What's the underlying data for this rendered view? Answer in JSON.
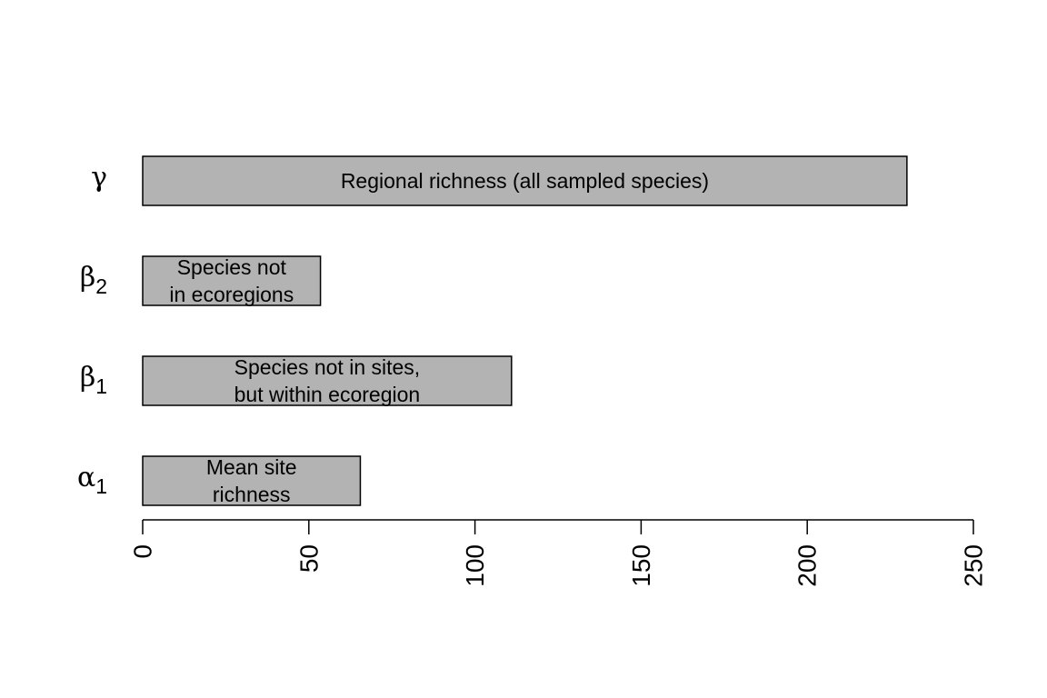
{
  "chart_data": {
    "type": "bar",
    "orientation": "horizontal",
    "categories": [
      {
        "symbol": "α",
        "subscript": "1",
        "value": 65.5,
        "annotation": [
          "Mean site",
          "richness"
        ]
      },
      {
        "symbol": "β",
        "subscript": "1",
        "value": 111,
        "annotation": [
          "Species not in sites,",
          "but within ecoregion"
        ]
      },
      {
        "symbol": "β",
        "subscript": "2",
        "value": 53.5,
        "annotation": [
          "Species not",
          "in ecoregions"
        ]
      },
      {
        "symbol": "γ",
        "subscript": "",
        "value": 230,
        "annotation": [
          "Regional richness (all sampled species)"
        ]
      }
    ],
    "xlim": [
      0,
      250
    ],
    "xticks": [
      0,
      50,
      100,
      150,
      200,
      250
    ],
    "xtick_labels": [
      "0",
      "50",
      "100",
      "150",
      "200",
      "250"
    ],
    "title": "",
    "xlabel": "",
    "ylabel": "",
    "grid": false,
    "colors": {
      "bar_fill": "#b3b3b3",
      "bar_stroke": "#000000"
    }
  }
}
